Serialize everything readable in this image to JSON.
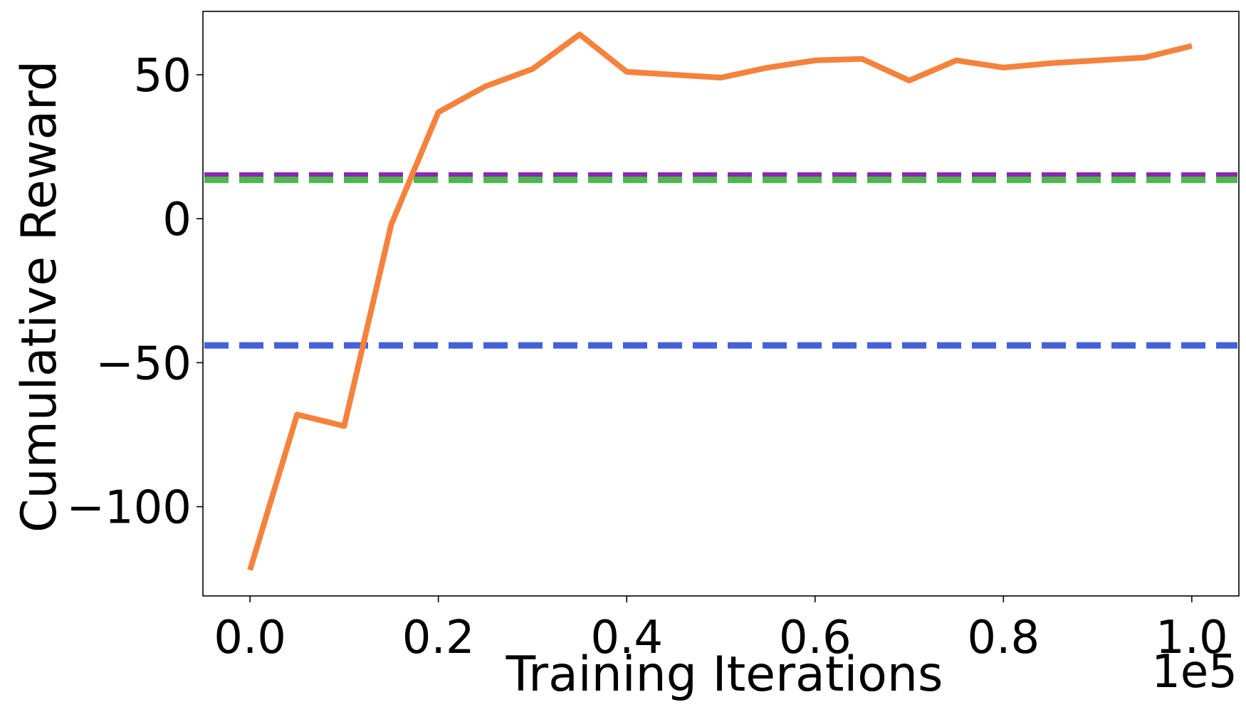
{
  "chart_data": {
    "type": "line",
    "title": "",
    "xlabel": "Training Iterations",
    "ylabel": "Cumulative Reward",
    "x_offset_label": "1e5",
    "xlim": [
      -0.05,
      1.05
    ],
    "ylim": [
      -131,
      72
    ],
    "x_ticks": [
      0.0,
      0.2,
      0.4,
      0.6,
      0.8,
      1.0
    ],
    "x_tick_labels": [
      "0.0",
      "0.2",
      "0.4",
      "0.6",
      "0.8",
      "1.0"
    ],
    "y_ticks": [
      -100,
      -50,
      0,
      50
    ],
    "y_tick_labels": [
      "−100",
      "−50",
      "0",
      "50"
    ],
    "grid": false,
    "legend": null,
    "series": [
      {
        "color": "#f5823c",
        "style": "solid",
        "x": [
          0.0,
          0.05,
          0.1,
          0.15,
          0.2,
          0.25,
          0.3,
          0.35,
          0.4,
          0.45,
          0.5,
          0.55,
          0.6,
          0.65,
          0.7,
          0.75,
          0.8,
          0.85,
          0.9,
          0.95,
          1.0
        ],
        "values": [
          -122,
          -68,
          -72,
          -2,
          37,
          46,
          52,
          64,
          51,
          50,
          49,
          52.5,
          55,
          55.5,
          48,
          55,
          52.5,
          54,
          55,
          56,
          60
        ]
      }
    ],
    "reference_lines": [
      {
        "color": "#8a28b4",
        "style": "dashed",
        "value": 15
      },
      {
        "color": "#4cb84c",
        "style": "dashed",
        "value": 13.5
      },
      {
        "color": "#4361d8",
        "style": "dashed",
        "value": -44
      }
    ]
  }
}
